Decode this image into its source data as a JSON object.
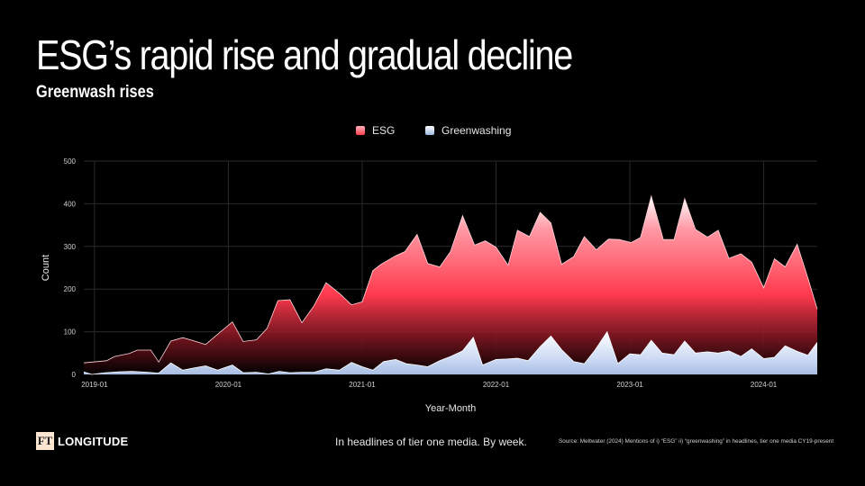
{
  "header": {
    "title": "ESG’s rapid rise and gradual decline",
    "subtitle": "Greenwash rises"
  },
  "footer": {
    "logo_mark": "FT",
    "logo_text": "LONGITUDE",
    "note": "In headlines of tier one media. By week.",
    "source": "Source: Meltwater (2024) Mentions of i) “ESG” ii) “greenwashing” in headlines, tier one media CY19-present"
  },
  "colors": {
    "background": "#000000",
    "esg_top": "#ff5c6b",
    "esg_bottom": "#ff3344",
    "greenwash_top": "#ffffff",
    "greenwash_bottom": "#9fb8e0"
  },
  "chart_data": {
    "type": "area",
    "xlabel": "Year-Month",
    "ylabel": "Count",
    "ylim": [
      0,
      500
    ],
    "yticks": [
      0,
      100,
      200,
      300,
      400,
      500
    ],
    "xlim": [
      2018.92,
      2024.4
    ],
    "xticks": [
      {
        "x": 2019.0,
        "label": "2019-01"
      },
      {
        "x": 2020.0,
        "label": "2020-01"
      },
      {
        "x": 2021.0,
        "label": "2021-01"
      },
      {
        "x": 2022.0,
        "label": "2022-01"
      },
      {
        "x": 2023.0,
        "label": "2023-01"
      },
      {
        "x": 2024.0,
        "label": "2024-01"
      }
    ],
    "grid": true,
    "legend": "top-center",
    "series": [
      {
        "name": "ESG",
        "points": [
          [
            2018.92,
            27
          ],
          [
            2019.09,
            32
          ],
          [
            2019.15,
            42
          ],
          [
            2019.26,
            49
          ],
          [
            2019.32,
            57
          ],
          [
            2019.42,
            57
          ],
          [
            2019.48,
            29
          ],
          [
            2019.57,
            78
          ],
          [
            2019.66,
            86
          ],
          [
            2019.74,
            79
          ],
          [
            2019.83,
            70
          ],
          [
            2019.92,
            94
          ],
          [
            2020.03,
            123
          ],
          [
            2020.11,
            77
          ],
          [
            2020.21,
            81
          ],
          [
            2020.29,
            108
          ],
          [
            2020.37,
            173
          ],
          [
            2020.46,
            175
          ],
          [
            2020.55,
            121
          ],
          [
            2020.64,
            161
          ],
          [
            2020.73,
            215
          ],
          [
            2020.83,
            190
          ],
          [
            2020.92,
            163
          ],
          [
            2021.0,
            170
          ],
          [
            2021.08,
            243
          ],
          [
            2021.14,
            258
          ],
          [
            2021.25,
            278
          ],
          [
            2021.32,
            288
          ],
          [
            2021.41,
            328
          ],
          [
            2021.49,
            260
          ],
          [
            2021.58,
            252
          ],
          [
            2021.66,
            288
          ],
          [
            2021.75,
            372
          ],
          [
            2021.84,
            303
          ],
          [
            2021.92,
            313
          ],
          [
            2022.0,
            298
          ],
          [
            2022.09,
            256
          ],
          [
            2022.16,
            338
          ],
          [
            2022.25,
            323
          ],
          [
            2022.33,
            380
          ],
          [
            2022.41,
            355
          ],
          [
            2022.49,
            258
          ],
          [
            2022.58,
            276
          ],
          [
            2022.66,
            323
          ],
          [
            2022.75,
            292
          ],
          [
            2022.84,
            317
          ],
          [
            2022.92,
            316
          ],
          [
            2023.01,
            309
          ],
          [
            2023.08,
            321
          ],
          [
            2023.16,
            418
          ],
          [
            2023.25,
            316
          ],
          [
            2023.33,
            316
          ],
          [
            2023.41,
            412
          ],
          [
            2023.49,
            340
          ],
          [
            2023.58,
            322
          ],
          [
            2023.66,
            338
          ],
          [
            2023.74,
            272
          ],
          [
            2023.83,
            283
          ],
          [
            2023.91,
            263
          ],
          [
            2024.0,
            203
          ],
          [
            2024.08,
            271
          ],
          [
            2024.16,
            252
          ],
          [
            2024.25,
            305
          ],
          [
            2024.33,
            226
          ],
          [
            2024.4,
            153
          ]
        ]
      },
      {
        "name": "Greenwashing",
        "points": [
          [
            2018.92,
            6
          ],
          [
            2018.98,
            0
          ],
          [
            2019.08,
            4
          ],
          [
            2019.18,
            6
          ],
          [
            2019.28,
            7
          ],
          [
            2019.4,
            5
          ],
          [
            2019.48,
            3
          ],
          [
            2019.57,
            27
          ],
          [
            2019.66,
            10
          ],
          [
            2019.74,
            15
          ],
          [
            2019.83,
            20
          ],
          [
            2019.92,
            10
          ],
          [
            2020.03,
            22
          ],
          [
            2020.11,
            4
          ],
          [
            2020.21,
            5
          ],
          [
            2020.3,
            1
          ],
          [
            2020.38,
            7
          ],
          [
            2020.46,
            4
          ],
          [
            2020.55,
            5
          ],
          [
            2020.64,
            5
          ],
          [
            2020.73,
            13
          ],
          [
            2020.83,
            10
          ],
          [
            2020.92,
            28
          ],
          [
            2021.0,
            18
          ],
          [
            2021.08,
            10
          ],
          [
            2021.16,
            30
          ],
          [
            2021.25,
            35
          ],
          [
            2021.33,
            25
          ],
          [
            2021.41,
            22
          ],
          [
            2021.49,
            18
          ],
          [
            2021.58,
            32
          ],
          [
            2021.66,
            42
          ],
          [
            2021.75,
            55
          ],
          [
            2021.83,
            87
          ],
          [
            2021.9,
            22
          ],
          [
            2022.0,
            35
          ],
          [
            2022.08,
            36
          ],
          [
            2022.16,
            38
          ],
          [
            2022.24,
            32
          ],
          [
            2022.33,
            65
          ],
          [
            2022.41,
            90
          ],
          [
            2022.49,
            58
          ],
          [
            2022.58,
            30
          ],
          [
            2022.66,
            25
          ],
          [
            2022.74,
            57
          ],
          [
            2022.83,
            100
          ],
          [
            2022.91,
            25
          ],
          [
            2023.0,
            48
          ],
          [
            2023.08,
            46
          ],
          [
            2023.16,
            80
          ],
          [
            2023.24,
            50
          ],
          [
            2023.33,
            46
          ],
          [
            2023.41,
            78
          ],
          [
            2023.49,
            50
          ],
          [
            2023.58,
            53
          ],
          [
            2023.66,
            50
          ],
          [
            2023.74,
            55
          ],
          [
            2023.83,
            42
          ],
          [
            2023.91,
            60
          ],
          [
            2024.0,
            37
          ],
          [
            2024.08,
            40
          ],
          [
            2024.16,
            67
          ],
          [
            2024.25,
            54
          ],
          [
            2024.33,
            45
          ],
          [
            2024.4,
            75
          ]
        ]
      }
    ]
  }
}
